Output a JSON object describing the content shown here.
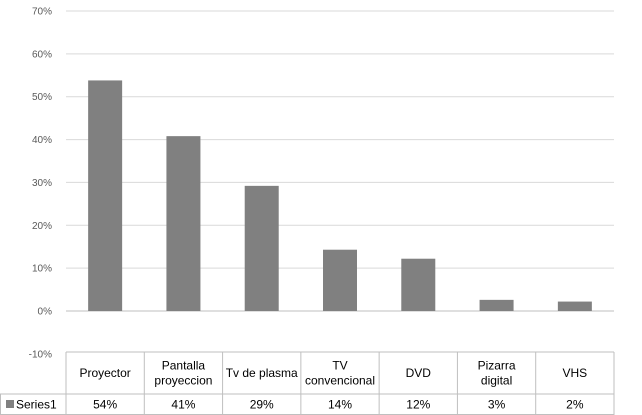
{
  "chart_data": {
    "type": "bar",
    "categories": [
      [
        "Proyector"
      ],
      [
        "Pantalla",
        "proyeccion"
      ],
      [
        "Tv de plasma"
      ],
      [
        "TV",
        "convencional"
      ],
      [
        "DVD"
      ],
      [
        "Pizarra",
        "digital"
      ],
      [
        "VHS"
      ]
    ],
    "series": [
      {
        "name": "Series1",
        "values": [
          53.8,
          40.8,
          29.2,
          14.3,
          12.2,
          2.6,
          2.2
        ],
        "labels": [
          "54%",
          "41%",
          "29%",
          "14%",
          "12%",
          "3%",
          "2%"
        ],
        "color": "#808080"
      }
    ],
    "ylim": [
      -10,
      70
    ],
    "yticks": [
      -10,
      0,
      10,
      20,
      30,
      40,
      50,
      60,
      70
    ],
    "ytick_labels": [
      "-10%",
      "0%",
      "10%",
      "20%",
      "30%",
      "40%",
      "50%",
      "60%",
      "70%"
    ],
    "grid": true,
    "legend": "data-table",
    "title": "",
    "xlabel": "",
    "ylabel": ""
  }
}
